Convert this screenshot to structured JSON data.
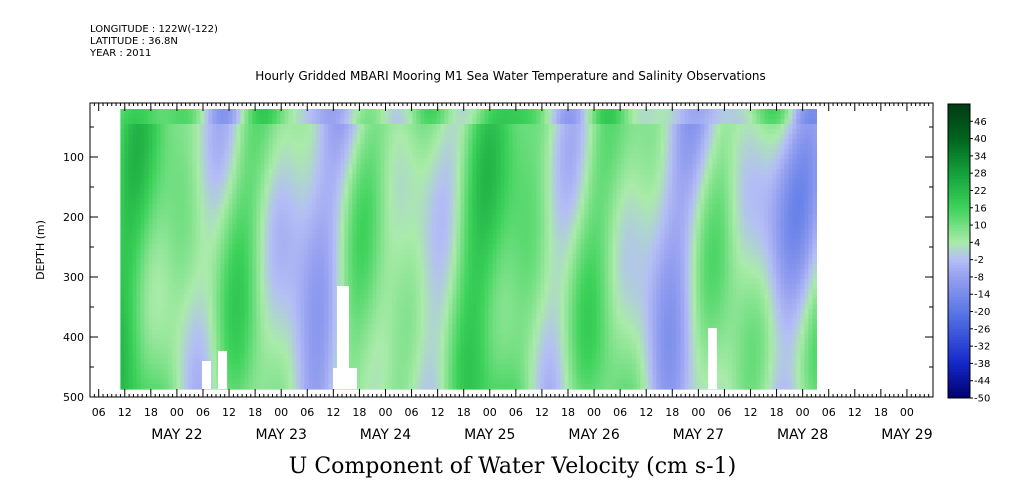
{
  "header": {
    "longitude": "LONGITUDE : 122W(-122)",
    "latitude": "LATITUDE : 36.8N",
    "year": "YEAR : 2011",
    "title": "Hourly Gridded MBARI Mooring M1 Sea Water Temperature and Salinity Observations"
  },
  "chart_data": {
    "type": "heatmap",
    "title": "Hourly Gridded MBARI Mooring M1 Sea Water Temperature and Salinity Observations",
    "xlabel": "U Component of Water Velocity (cm s-1)",
    "ylabel": "DEPTH (m)",
    "ylim": [
      500,
      10
    ],
    "y_ticks": [
      100,
      200,
      300,
      400,
      500
    ],
    "x_range": [
      "2011-05-21T04:00",
      "2011-05-29T06:00"
    ],
    "hour_tick_labels": [
      "06",
      "12",
      "18",
      "00",
      "06",
      "12",
      "18",
      "00",
      "06",
      "12",
      "18",
      "00",
      "06",
      "12",
      "18",
      "00",
      "06",
      "12",
      "18",
      "00",
      "06",
      "12",
      "18",
      "00",
      "06",
      "12",
      "18",
      "00",
      "06",
      "12",
      "18",
      "00"
    ],
    "day_labels": [
      "MAY 22",
      "MAY 23",
      "MAY 24",
      "MAY 25",
      "MAY 26",
      "MAY 27",
      "MAY 28",
      "MAY 29"
    ],
    "data_range": {
      "start": "2011-05-21T11:00",
      "end": "2011-05-28T03:00",
      "depth_min": 20,
      "depth_max": 485
    },
    "colorbar": {
      "labels": [
        46,
        40,
        34,
        28,
        22,
        16,
        10,
        4,
        -2,
        -8,
        -14,
        -20,
        -26,
        -32,
        -38,
        -44,
        -50
      ],
      "min": -50,
      "max": 52
    },
    "legend_position": "right",
    "grid": false
  }
}
